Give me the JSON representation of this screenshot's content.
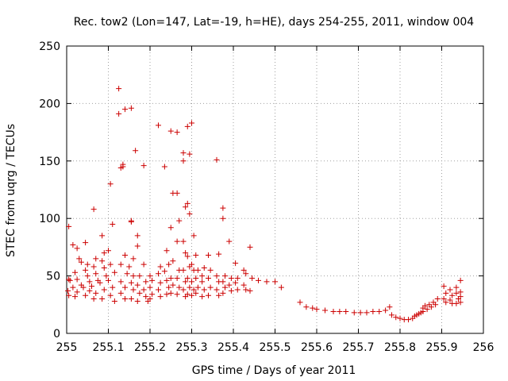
{
  "chart_data": {
    "type": "scatter",
    "title": "Rec. tow2 (Lon=147, Lat=-19, h=HE), days 254-255, 2011, window 004",
    "xlabel": "GPS time / Days of year 2011",
    "ylabel": "STEC from uqrg / TECUs",
    "xlim": [
      255,
      256
    ],
    "ylim": [
      0,
      250
    ],
    "xticks": [
      255,
      255.1,
      255.2,
      255.3,
      255.4,
      255.5,
      255.6,
      255.7,
      255.8,
      255.9,
      256
    ],
    "xtick_labels": [
      "255",
      "255.1",
      "255.2",
      "255.3",
      "255.4",
      "255.5",
      "255.6",
      "255.7",
      "255.8",
      "255.9",
      "256"
    ],
    "yticks": [
      0,
      50,
      100,
      150,
      200,
      250
    ],
    "ytick_labels": [
      "0",
      "50",
      "100",
      "150",
      "200",
      "250"
    ],
    "grid": true,
    "marker": "+",
    "color": "#cc0000",
    "series": [
      {
        "points": [
          [
            255.005,
            93
          ],
          [
            255.005,
            47
          ],
          [
            255.008,
            46
          ],
          [
            255.003,
            37
          ],
          [
            255.005,
            33
          ],
          [
            255.015,
            77
          ],
          [
            255.025,
            74
          ],
          [
            255.03,
            65
          ],
          [
            255.035,
            62
          ],
          [
            255.02,
            53
          ],
          [
            255.025,
            47
          ],
          [
            255.035,
            42
          ],
          [
            255.015,
            40
          ],
          [
            255.025,
            36
          ],
          [
            255.02,
            32
          ],
          [
            255.045,
            79
          ],
          [
            255.05,
            60
          ],
          [
            255.045,
            55
          ],
          [
            255.05,
            50
          ],
          [
            255.055,
            45
          ],
          [
            255.04,
            40
          ],
          [
            255.055,
            37
          ],
          [
            255.045,
            33
          ],
          [
            255.065,
            108
          ],
          [
            255.07,
            65
          ],
          [
            255.065,
            58
          ],
          [
            255.07,
            52
          ],
          [
            255.075,
            46
          ],
          [
            255.06,
            41
          ],
          [
            255.07,
            35
          ],
          [
            255.065,
            30
          ],
          [
            255.085,
            85
          ],
          [
            255.09,
            70
          ],
          [
            255.085,
            63
          ],
          [
            255.09,
            57
          ],
          [
            255.095,
            50
          ],
          [
            255.08,
            44
          ],
          [
            255.09,
            38
          ],
          [
            255.085,
            30
          ],
          [
            255.105,
            130
          ],
          [
            255.11,
            95
          ],
          [
            255.1,
            72
          ],
          [
            255.105,
            60
          ],
          [
            255.115,
            53
          ],
          [
            255.1,
            46
          ],
          [
            255.11,
            40
          ],
          [
            255.105,
            33
          ],
          [
            255.115,
            28
          ],
          [
            255.125,
            213
          ],
          [
            255.125,
            191
          ],
          [
            255.135,
            145
          ],
          [
            255.13,
            144
          ],
          [
            255.14,
            195
          ],
          [
            255.135,
            147
          ],
          [
            255.14,
            68
          ],
          [
            255.13,
            60
          ],
          [
            255.145,
            52
          ],
          [
            255.13,
            45
          ],
          [
            255.14,
            40
          ],
          [
            255.13,
            35
          ],
          [
            255.14,
            30
          ],
          [
            255.155,
            196
          ],
          [
            255.155,
            98
          ],
          [
            255.155,
            97
          ],
          [
            255.16,
            65
          ],
          [
            255.15,
            58
          ],
          [
            255.16,
            50
          ],
          [
            255.155,
            44
          ],
          [
            255.16,
            38
          ],
          [
            255.155,
            30
          ],
          [
            255.165,
            159
          ],
          [
            255.17,
            85
          ],
          [
            255.17,
            76
          ],
          [
            255.175,
            50
          ],
          [
            255.17,
            42
          ],
          [
            255.175,
            35
          ],
          [
            255.17,
            28
          ],
          [
            255.185,
            146
          ],
          [
            255.185,
            60
          ],
          [
            255.19,
            45
          ],
          [
            255.185,
            38
          ],
          [
            255.19,
            32
          ],
          [
            255.195,
            28
          ],
          [
            255.2,
            50
          ],
          [
            255.205,
            46
          ],
          [
            255.2,
            40
          ],
          [
            255.205,
            34
          ],
          [
            255.2,
            30
          ],
          [
            255.22,
            181
          ],
          [
            255.225,
            58
          ],
          [
            255.22,
            52
          ],
          [
            255.225,
            44
          ],
          [
            255.22,
            38
          ],
          [
            255.225,
            32
          ],
          [
            255.235,
            145
          ],
          [
            255.24,
            72
          ],
          [
            255.245,
            60
          ],
          [
            255.235,
            54
          ],
          [
            255.24,
            46
          ],
          [
            255.245,
            40
          ],
          [
            255.24,
            34
          ],
          [
            255.25,
            176
          ],
          [
            255.255,
            122
          ],
          [
            255.25,
            92
          ],
          [
            255.255,
            63
          ],
          [
            255.25,
            48
          ],
          [
            255.255,
            42
          ],
          [
            255.25,
            35
          ],
          [
            255.265,
            175
          ],
          [
            255.265,
            122
          ],
          [
            255.27,
            98
          ],
          [
            255.265,
            80
          ],
          [
            255.27,
            55
          ],
          [
            255.265,
            48
          ],
          [
            255.27,
            40
          ],
          [
            255.265,
            34
          ],
          [
            255.28,
            157
          ],
          [
            255.28,
            150
          ],
          [
            255.285,
            110
          ],
          [
            255.28,
            80
          ],
          [
            255.285,
            70
          ],
          [
            255.28,
            55
          ],
          [
            255.285,
            45
          ],
          [
            255.28,
            38
          ],
          [
            255.285,
            32
          ],
          [
            255.29,
            180
          ],
          [
            255.295,
            156
          ],
          [
            255.29,
            113
          ],
          [
            255.295,
            104
          ],
          [
            255.29,
            67
          ],
          [
            255.295,
            58
          ],
          [
            255.29,
            48
          ],
          [
            255.295,
            40
          ],
          [
            255.29,
            34
          ],
          [
            255.3,
            183
          ],
          [
            255.305,
            85
          ],
          [
            255.3,
            60
          ],
          [
            255.305,
            55
          ],
          [
            255.3,
            45
          ],
          [
            255.305,
            38
          ],
          [
            255.3,
            33
          ],
          [
            255.31,
            68
          ],
          [
            255.315,
            55
          ],
          [
            255.31,
            48
          ],
          [
            255.315,
            40
          ],
          [
            255.31,
            35
          ],
          [
            255.325,
            50
          ],
          [
            255.33,
            57
          ],
          [
            255.325,
            45
          ],
          [
            255.33,
            38
          ],
          [
            255.325,
            32
          ],
          [
            255.34,
            68
          ],
          [
            255.345,
            55
          ],
          [
            255.34,
            48
          ],
          [
            255.345,
            40
          ],
          [
            255.34,
            33
          ],
          [
            255.36,
            151
          ],
          [
            255.365,
            69
          ],
          [
            255.36,
            50
          ],
          [
            255.365,
            45
          ],
          [
            255.36,
            38
          ],
          [
            255.365,
            33
          ],
          [
            255.375,
            109
          ],
          [
            255.375,
            100
          ],
          [
            255.38,
            50
          ],
          [
            255.375,
            45
          ],
          [
            255.38,
            40
          ],
          [
            255.375,
            35
          ],
          [
            255.39,
            80
          ],
          [
            255.395,
            48
          ],
          [
            255.39,
            42
          ],
          [
            255.395,
            37
          ],
          [
            255.405,
            61
          ],
          [
            255.41,
            48
          ],
          [
            255.405,
            44
          ],
          [
            255.41,
            38
          ],
          [
            255.425,
            55
          ],
          [
            255.43,
            52
          ],
          [
            255.425,
            42
          ],
          [
            255.43,
            38
          ],
          [
            255.44,
            75
          ],
          [
            255.445,
            48
          ],
          [
            255.44,
            37
          ],
          [
            255.46,
            46
          ],
          [
            255.48,
            45
          ],
          [
            255.5,
            45
          ],
          [
            255.515,
            40
          ],
          [
            255.56,
            27
          ],
          [
            255.575,
            23
          ],
          [
            255.59,
            22
          ],
          [
            255.6,
            21
          ],
          [
            255.62,
            20
          ],
          [
            255.64,
            19
          ],
          [
            255.655,
            19
          ],
          [
            255.67,
            19
          ],
          [
            255.69,
            18
          ],
          [
            255.705,
            18
          ],
          [
            255.72,
            18
          ],
          [
            255.735,
            19
          ],
          [
            255.75,
            19
          ],
          [
            255.765,
            20
          ],
          [
            255.775,
            23
          ],
          [
            255.78,
            16
          ],
          [
            255.79,
            14
          ],
          [
            255.8,
            13
          ],
          [
            255.81,
            12
          ],
          [
            255.82,
            12
          ],
          [
            255.83,
            13
          ],
          [
            255.84,
            16
          ],
          [
            255.85,
            18
          ],
          [
            255.855,
            22
          ],
          [
            255.86,
            24
          ],
          [
            255.87,
            25
          ],
          [
            255.88,
            27
          ],
          [
            255.89,
            30
          ],
          [
            255.835,
            15
          ],
          [
            255.845,
            17
          ],
          [
            255.855,
            19
          ],
          [
            255.865,
            21
          ],
          [
            255.875,
            23
          ],
          [
            255.885,
            25
          ],
          [
            255.905,
            41
          ],
          [
            255.91,
            35
          ],
          [
            255.905,
            30
          ],
          [
            255.91,
            27
          ],
          [
            255.92,
            38
          ],
          [
            255.925,
            33
          ],
          [
            255.92,
            29
          ],
          [
            255.925,
            26
          ],
          [
            255.935,
            40
          ],
          [
            255.935,
            35
          ],
          [
            255.94,
            30
          ],
          [
            255.935,
            26
          ],
          [
            255.945,
            46
          ],
          [
            255.945,
            36
          ],
          [
            255.945,
            32
          ],
          [
            255.945,
            27
          ]
        ]
      }
    ]
  }
}
